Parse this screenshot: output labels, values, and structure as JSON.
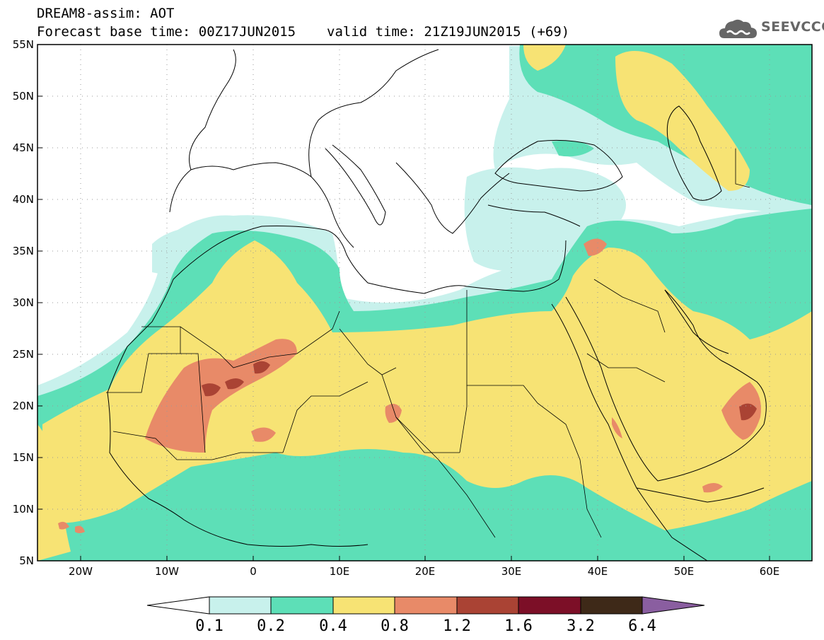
{
  "header": {
    "title_line1": "DREAM8-assim: AOT",
    "base_time_label": "Forecast base time: 00Z17JUN2015",
    "valid_time_label": "valid time: 21Z19JUN2015 (+69)"
  },
  "logo": {
    "text": "SEEVCCC",
    "icon": "cloud-icon",
    "color": "#666666"
  },
  "map": {
    "lon_range": [
      -25,
      65
    ],
    "lat_range": [
      5,
      55
    ],
    "lon_ticks": [
      "20W",
      "10W",
      "0",
      "10E",
      "20E",
      "30E",
      "40E",
      "50E",
      "60E"
    ],
    "lat_ticks": [
      "55N",
      "50N",
      "45N",
      "40N",
      "35N",
      "30N",
      "25N",
      "20N",
      "15N",
      "10N",
      "5N"
    ],
    "grid": "dotted"
  },
  "colorbar": {
    "labels": [
      "0.1",
      "0.2",
      "0.4",
      "0.8",
      "1.2",
      "1.6",
      "3.2",
      "6.4"
    ],
    "colors": [
      "#ffffff",
      "#c8f1ec",
      "#5ddfb7",
      "#f7e374",
      "#e88a68",
      "#aa4334",
      "#7c0f27",
      "#3e2918",
      "#8a5ea0"
    ]
  }
}
